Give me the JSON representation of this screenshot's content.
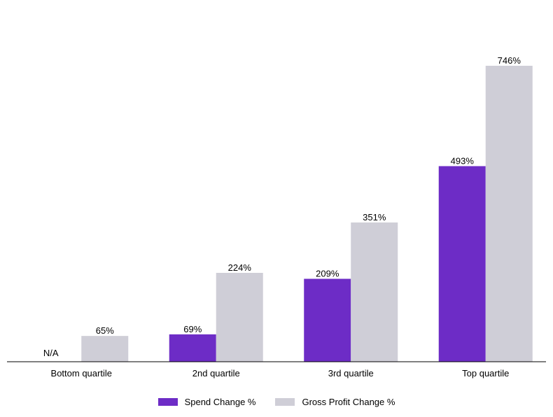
{
  "chart_data": {
    "type": "bar",
    "categories": [
      "Bottom quartile",
      "2nd quartile",
      "3rd quartile",
      "Top quartile"
    ],
    "series": [
      {
        "name": "Spend Change %",
        "values": [
          null,
          69,
          209,
          493
        ],
        "labels": [
          "N/A",
          "69%",
          "209%",
          "493%"
        ],
        "color": "#6D2CC6"
      },
      {
        "name": "Gross Profit Change %",
        "values": [
          65,
          224,
          351,
          746
        ],
        "labels": [
          "65%",
          "224%",
          "351%",
          "746%"
        ],
        "color": "#CFCED7"
      }
    ],
    "title": "",
    "xlabel": "",
    "ylabel": "",
    "ylim": [
      0,
      900
    ],
    "grid": false,
    "legend": "bottom-center"
  }
}
